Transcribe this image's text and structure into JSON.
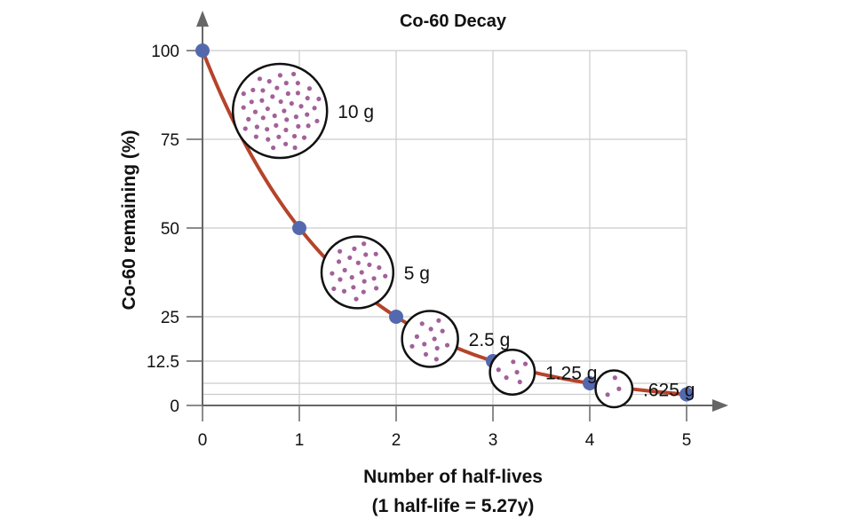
{
  "chart_data": {
    "type": "line",
    "title": "Co-60 Decay",
    "xlabel": "Number of half-lives",
    "xlabel_note": "(1 half-life = 5.27y)",
    "ylabel": "Co-60 remaining (%)",
    "x": [
      0,
      1,
      2,
      3,
      4,
      5
    ],
    "values": [
      100,
      50,
      25,
      12.5,
      6.25,
      3.125
    ],
    "xticks": [
      "0",
      "1",
      "2",
      "3",
      "4",
      "5"
    ],
    "yticks": [
      {
        "value": 0,
        "label": "0"
      },
      {
        "value": 12.5,
        "label": "12.5"
      },
      {
        "value": 25,
        "label": "25"
      },
      {
        "value": 50,
        "label": "50"
      },
      {
        "value": 75,
        "label": "75"
      },
      {
        "value": 100,
        "label": "100"
      }
    ],
    "xlim": [
      0,
      5
    ],
    "ylim": [
      0,
      100
    ],
    "grid": true,
    "annotations": [
      {
        "at_x": 0.8,
        "label": "10 g",
        "grams": 10
      },
      {
        "at_x": 1.6,
        "label": "5 g",
        "grams": 5
      },
      {
        "at_x": 2.35,
        "label": "2.5 g",
        "grams": 2.5
      },
      {
        "at_x": 3.2,
        "label": "1.25 g",
        "grams": 1.25
      },
      {
        "at_x": 4.25,
        "label": ".625 g",
        "grams": 0.625
      }
    ],
    "colors": {
      "curve": "#b5442a",
      "points": "#5469ad",
      "particles": "#a2619a",
      "grid": "#cccccc",
      "axis": "#666666"
    }
  }
}
